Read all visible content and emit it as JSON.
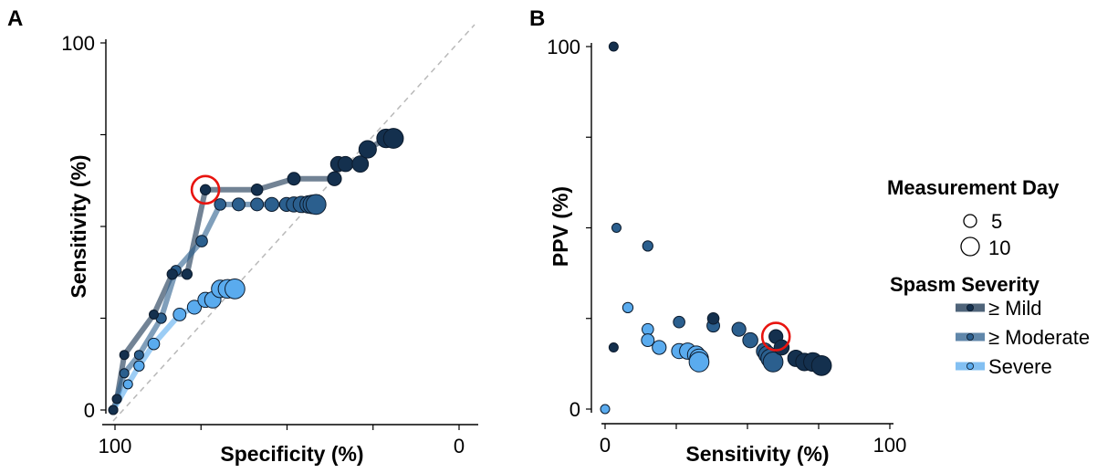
{
  "chart_data": [
    {
      "panel": "A",
      "type": "line",
      "xlabel": "Specificity (%)",
      "ylabel": "Sensitivity (%)",
      "xlim": [
        100,
        0
      ],
      "ylim": [
        0,
        100
      ],
      "xticks": [
        "100",
        "0"
      ],
      "yticks": [
        "100",
        "0"
      ],
      "reference_line": "diagonal, dashed",
      "highlight": {
        "series": "≥ Mild",
        "x": 73,
        "y": 60
      },
      "series": [
        {
          "name": "≥ Mild",
          "color": "#14304e",
          "points": [
            {
              "x": 98,
              "y": 0,
              "day": 1
            },
            {
              "x": 97,
              "y": 3,
              "day": 1
            },
            {
              "x": 95,
              "y": 15,
              "day": 1
            },
            {
              "x": 87,
              "y": 26,
              "day": 1
            },
            {
              "x": 82,
              "y": 37,
              "day": 2
            },
            {
              "x": 78,
              "y": 37,
              "day": 2
            },
            {
              "x": 73,
              "y": 60,
              "day": 2
            },
            {
              "x": 59,
              "y": 60,
              "day": 3
            },
            {
              "x": 49,
              "y": 63,
              "day": 4
            },
            {
              "x": 38,
              "y": 63,
              "day": 5
            },
            {
              "x": 37,
              "y": 67,
              "day": 6
            },
            {
              "x": 35,
              "y": 67,
              "day": 6
            },
            {
              "x": 31,
              "y": 67,
              "day": 7
            },
            {
              "x": 29,
              "y": 71,
              "day": 8
            },
            {
              "x": 24,
              "y": 74,
              "day": 9
            },
            {
              "x": 22,
              "y": 74,
              "day": 10
            }
          ]
        },
        {
          "name": "≥ Moderate",
          "color": "#2b5f8e",
          "points": [
            {
              "x": 97,
              "y": 3,
              "day": 1
            },
            {
              "x": 95,
              "y": 10,
              "day": 1
            },
            {
              "x": 91,
              "y": 15,
              "day": 1
            },
            {
              "x": 85,
              "y": 25,
              "day": 2
            },
            {
              "x": 81,
              "y": 38,
              "day": 2
            },
            {
              "x": 74,
              "y": 46,
              "day": 3
            },
            {
              "x": 69,
              "y": 56,
              "day": 3
            },
            {
              "x": 64,
              "y": 56,
              "day": 4
            },
            {
              "x": 59,
              "y": 56,
              "day": 4
            },
            {
              "x": 55,
              "y": 56,
              "day": 5
            },
            {
              "x": 51,
              "y": 56,
              "day": 5
            },
            {
              "x": 49,
              "y": 56,
              "day": 6
            },
            {
              "x": 47,
              "y": 56,
              "day": 7
            },
            {
              "x": 45,
              "y": 56,
              "day": 8
            },
            {
              "x": 44,
              "y": 56,
              "day": 9
            },
            {
              "x": 43,
              "y": 56,
              "day": 10
            }
          ]
        },
        {
          "name": "Severe",
          "color": "#5aabee",
          "points": [
            {
              "x": 98,
              "y": 0,
              "day": 1
            },
            {
              "x": 94,
              "y": 7,
              "day": 1
            },
            {
              "x": 91,
              "y": 12,
              "day": 2
            },
            {
              "x": 87,
              "y": 18,
              "day": 3
            },
            {
              "x": 80,
              "y": 26,
              "day": 4
            },
            {
              "x": 76,
              "y": 28,
              "day": 5
            },
            {
              "x": 73,
              "y": 30,
              "day": 6
            },
            {
              "x": 71,
              "y": 30,
              "day": 7
            },
            {
              "x": 69,
              "y": 33,
              "day": 8
            },
            {
              "x": 67,
              "y": 33,
              "day": 9
            },
            {
              "x": 65,
              "y": 33,
              "day": 10
            }
          ]
        }
      ]
    },
    {
      "panel": "B",
      "type": "scatter",
      "xlabel": "Sensitivity (%)",
      "ylabel": "PPV (%)",
      "xlim": [
        0,
        100
      ],
      "ylim": [
        0,
        100
      ],
      "xticks": [
        "0",
        "100"
      ],
      "yticks": [
        "100",
        "0"
      ],
      "highlight": {
        "series": "≥ Mild",
        "x": 60,
        "y": 20
      },
      "series": [
        {
          "name": "≥ Mild",
          "color": "#14304e",
          "points": [
            {
              "x": 3,
              "y": 100,
              "day": 1
            },
            {
              "x": 3,
              "y": 17,
              "day": 1
            },
            {
              "x": 38,
              "y": 25,
              "day": 3
            },
            {
              "x": 60,
              "y": 20,
              "day": 5
            },
            {
              "x": 62,
              "y": 17,
              "day": 6
            },
            {
              "x": 67,
              "y": 14,
              "day": 7
            },
            {
              "x": 70,
              "y": 13,
              "day": 8
            },
            {
              "x": 73,
              "y": 13,
              "day": 9
            },
            {
              "x": 76,
              "y": 12,
              "day": 10
            }
          ]
        },
        {
          "name": "≥ Moderate",
          "color": "#2b5f8e",
          "points": [
            {
              "x": 4,
              "y": 50,
              "day": 1
            },
            {
              "x": 15,
              "y": 45,
              "day": 2
            },
            {
              "x": 26,
              "y": 24,
              "day": 3
            },
            {
              "x": 38,
              "y": 23,
              "day": 4
            },
            {
              "x": 47,
              "y": 22,
              "day": 5
            },
            {
              "x": 51,
              "y": 19,
              "day": 6
            },
            {
              "x": 56,
              "y": 16,
              "day": 7
            },
            {
              "x": 57,
              "y": 15,
              "day": 8
            },
            {
              "x": 58,
              "y": 14,
              "day": 9
            },
            {
              "x": 59,
              "y": 13,
              "day": 10
            }
          ]
        },
        {
          "name": "Severe",
          "color": "#5aabee",
          "points": [
            {
              "x": 0,
              "y": 0,
              "day": 1
            },
            {
              "x": 8,
              "y": 28,
              "day": 2
            },
            {
              "x": 15,
              "y": 22,
              "day": 3
            },
            {
              "x": 15,
              "y": 19,
              "day": 4
            },
            {
              "x": 19,
              "y": 17,
              "day": 5
            },
            {
              "x": 26,
              "y": 16,
              "day": 6
            },
            {
              "x": 29,
              "y": 16,
              "day": 7
            },
            {
              "x": 32,
              "y": 15,
              "day": 8
            },
            {
              "x": 33,
              "y": 14,
              "day": 9
            },
            {
              "x": 33,
              "y": 13,
              "day": 10
            }
          ]
        }
      ]
    }
  ],
  "labels": {
    "panel_a": "A",
    "panel_b": "B"
  },
  "legend": {
    "size_title": "Measurement Day",
    "size_items": [
      "5",
      "10"
    ],
    "color_title": "Spasm Severity",
    "color_items": [
      "≥ Mild",
      "≥ Moderate",
      "Severe"
    ],
    "highlight_color": "#e8140f"
  }
}
